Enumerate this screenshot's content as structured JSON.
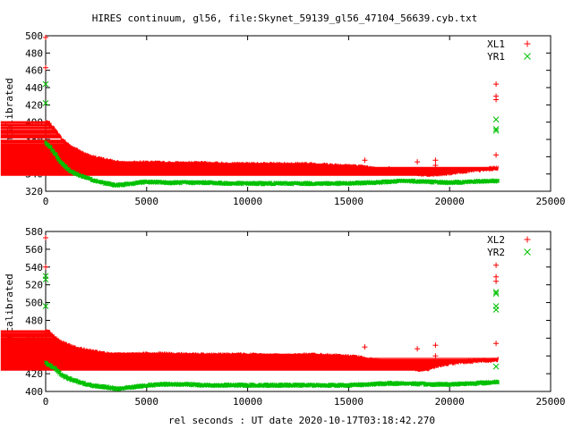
{
  "title": "HIRES continuum, gl56, file:Skynet_59139_gl56_47104_56639.cyb.txt",
  "xlabel": "rel seconds : UT date 2020-10-17T03:18:42.270",
  "colors": {
    "red": "#ff0000",
    "green": "#00c000",
    "axis": "#000000"
  },
  "chart_data": [
    {
      "type": "scatter",
      "ylabel": "Uncalibrated",
      "xlim": [
        0,
        25000
      ],
      "ylim": [
        320,
        500
      ],
      "xticks": [
        0,
        5000,
        10000,
        15000,
        20000,
        25000
      ],
      "yticks": [
        320,
        340,
        360,
        380,
        400,
        420,
        440,
        460,
        480,
        500
      ],
      "legend_position": "top-right",
      "series": [
        {
          "name": "XL1",
          "marker": "+",
          "color": "#ff0000",
          "points": [
            [
              0,
              400
            ],
            [
              200,
              398
            ],
            [
              500,
              390
            ],
            [
              800,
              380
            ],
            [
              1200,
              372
            ],
            [
              1600,
              367
            ],
            [
              2000,
              362
            ],
            [
              2500,
              358
            ],
            [
              3000,
              356
            ],
            [
              3500,
              353
            ],
            [
              4000,
              352
            ],
            [
              5000,
              353
            ],
            [
              6000,
              352
            ],
            [
              7000,
              352
            ],
            [
              8000,
              352
            ],
            [
              9000,
              351
            ],
            [
              10000,
              351
            ],
            [
              11000,
              351
            ],
            [
              12000,
              351
            ],
            [
              13000,
              351
            ],
            [
              14000,
              350
            ],
            [
              15000,
              349
            ],
            [
              15500,
              348
            ],
            [
              16000,
              347
            ],
            [
              16500,
              345
            ],
            [
              17000,
              344
            ],
            [
              17500,
              343
            ],
            [
              18000,
              342
            ],
            [
              18500,
              340
            ],
            [
              19000,
              339
            ],
            [
              19500,
              340
            ],
            [
              20000,
              341
            ],
            [
              20500,
              343
            ],
            [
              21000,
              344
            ],
            [
              21500,
              345
            ],
            [
              22000,
              346
            ],
            [
              22400,
              347
            ]
          ],
          "outliers": [
            [
              0,
              498
            ],
            [
              0,
              463
            ],
            [
              15800,
              356
            ],
            [
              17000,
              346
            ],
            [
              18400,
              354
            ],
            [
              19300,
              356
            ],
            [
              19300,
              350
            ],
            [
              22300,
              444
            ],
            [
              22300,
              430
            ],
            [
              22300,
              426
            ],
            [
              22300,
              362
            ]
          ]
        },
        {
          "name": "YR1",
          "marker": "x",
          "color": "#00c000",
          "points": [
            [
              0,
              376
            ],
            [
              200,
              372
            ],
            [
              500,
              362
            ],
            [
              800,
              352
            ],
            [
              1200,
              344
            ],
            [
              1600,
              339
            ],
            [
              2000,
              336
            ],
            [
              2500,
              332
            ],
            [
              3000,
              329
            ],
            [
              3500,
              327
            ],
            [
              4000,
              328
            ],
            [
              5000,
              331
            ],
            [
              6000,
              330
            ],
            [
              7000,
              330
            ],
            [
              8000,
              330
            ],
            [
              9000,
              329
            ],
            [
              10000,
              329
            ],
            [
              11000,
              329
            ],
            [
              12000,
              329
            ],
            [
              13000,
              329
            ],
            [
              14000,
              329
            ],
            [
              15000,
              329
            ],
            [
              16000,
              330
            ],
            [
              17000,
              331
            ],
            [
              18000,
              332
            ],
            [
              19000,
              331
            ],
            [
              20000,
              330
            ],
            [
              21000,
              331
            ],
            [
              22000,
              332
            ],
            [
              22400,
              332
            ]
          ],
          "outliers": [
            [
              0,
              444
            ],
            [
              0,
              422
            ],
            [
              22300,
              403
            ],
            [
              22300,
              392
            ],
            [
              22300,
              390
            ]
          ]
        }
      ]
    },
    {
      "type": "scatter",
      "ylabel": "Uncalibrated",
      "xlim": [
        0,
        25000
      ],
      "ylim": [
        400,
        580
      ],
      "xticks": [
        0,
        5000,
        10000,
        15000,
        20000,
        25000
      ],
      "yticks": [
        400,
        420,
        440,
        460,
        480,
        500,
        520,
        540,
        560,
        580
      ],
      "legend_position": "top-right",
      "series": [
        {
          "name": "XL2",
          "marker": "+",
          "color": "#ff0000",
          "points": [
            [
              0,
              468
            ],
            [
              200,
              466
            ],
            [
              500,
              460
            ],
            [
              800,
              455
            ],
            [
              1200,
              451
            ],
            [
              1600,
              448
            ],
            [
              2000,
              446
            ],
            [
              2500,
              444
            ],
            [
              3000,
              442
            ],
            [
              3500,
              441
            ],
            [
              4000,
              441
            ],
            [
              5000,
              442
            ],
            [
              6000,
              442
            ],
            [
              7000,
              441
            ],
            [
              8000,
              441
            ],
            [
              9000,
              441
            ],
            [
              10000,
              441
            ],
            [
              11000,
              440
            ],
            [
              12000,
              440
            ],
            [
              13000,
              441
            ],
            [
              14000,
              440
            ],
            [
              15000,
              439
            ],
            [
              15500,
              438
            ],
            [
              16000,
              436
            ],
            [
              16500,
              434
            ],
            [
              17000,
              432
            ],
            [
              17500,
              429
            ],
            [
              18000,
              427
            ],
            [
              18500,
              425
            ],
            [
              19000,
              426
            ],
            [
              19500,
              430
            ],
            [
              20000,
              432
            ],
            [
              20500,
              433
            ],
            [
              21000,
              434
            ],
            [
              21500,
              435
            ],
            [
              22000,
              435
            ],
            [
              22400,
              436
            ]
          ],
          "outliers": [
            [
              0,
              573
            ],
            [
              0,
              540
            ],
            [
              15800,
              450
            ],
            [
              18400,
              448
            ],
            [
              19300,
              452
            ],
            [
              19300,
              440
            ],
            [
              22300,
              542
            ],
            [
              22300,
              529
            ],
            [
              22300,
              524
            ],
            [
              22300,
              454
            ]
          ]
        },
        {
          "name": "YR2",
          "marker": "x",
          "color": "#00c000",
          "points": [
            [
              0,
              432
            ],
            [
              200,
              430
            ],
            [
              500,
              425
            ],
            [
              800,
              418
            ],
            [
              1200,
              414
            ],
            [
              1600,
              411
            ],
            [
              2000,
              408
            ],
            [
              2500,
              406
            ],
            [
              3000,
              405
            ],
            [
              3500,
              403
            ],
            [
              4000,
              404
            ],
            [
              5000,
              407
            ],
            [
              6000,
              408
            ],
            [
              7000,
              408
            ],
            [
              8000,
              407
            ],
            [
              9000,
              407
            ],
            [
              10000,
              407
            ],
            [
              11000,
              407
            ],
            [
              12000,
              407
            ],
            [
              13000,
              407
            ],
            [
              14000,
              407
            ],
            [
              15000,
              407
            ],
            [
              16000,
              408
            ],
            [
              17000,
              409
            ],
            [
              18000,
              409
            ],
            [
              19000,
              408
            ],
            [
              20000,
              408
            ],
            [
              21000,
              409
            ],
            [
              22000,
              410
            ],
            [
              22400,
              411
            ]
          ],
          "outliers": [
            [
              0,
              530
            ],
            [
              0,
              526
            ],
            [
              0,
              496
            ],
            [
              22300,
              512
            ],
            [
              22300,
              510
            ],
            [
              22300,
              496
            ],
            [
              22300,
              492
            ],
            [
              22300,
              428
            ]
          ]
        }
      ]
    }
  ]
}
